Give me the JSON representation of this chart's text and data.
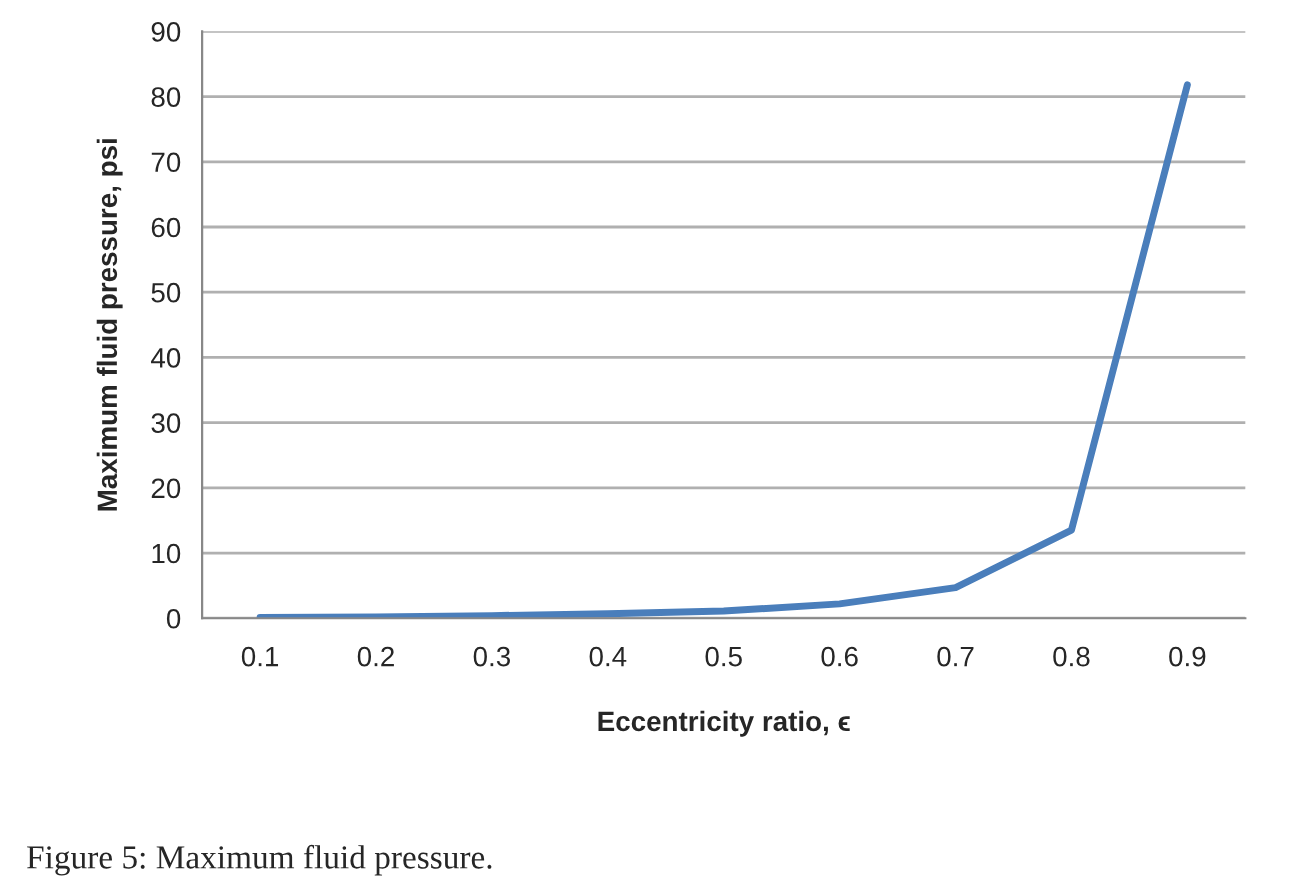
{
  "chart_data": {
    "type": "line",
    "xlabel": "Eccentricity ratio, ϵ",
    "ylabel": "Maximum fluid pressure, psi",
    "categories": [
      "0.1",
      "0.2",
      "0.3",
      "0.4",
      "0.5",
      "0.6",
      "0.7",
      "0.8",
      "0.9"
    ],
    "series": [
      {
        "color": "#4a7ebb",
        "values": [
          0.1,
          0.2,
          0.4,
          0.7,
          1.1,
          2.2,
          4.7,
          13.5,
          81.8
        ]
      }
    ],
    "ylim": [
      0,
      90
    ],
    "yticks": [
      0,
      10,
      20,
      30,
      40,
      50,
      60,
      70,
      80,
      90
    ],
    "grid": "y",
    "marker": "none",
    "line_style": "solid",
    "annotations": [
      "Figure 5: Maximum fluid pressure."
    ]
  }
}
